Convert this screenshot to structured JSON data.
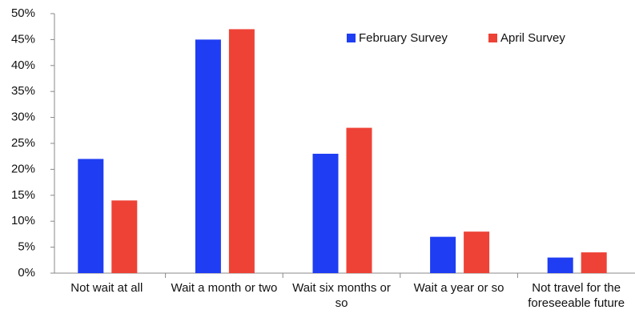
{
  "chart_data": {
    "type": "bar",
    "categories": [
      "Not wait at all",
      "Wait a month or two",
      "Wait six months or so",
      "Wait a year or so",
      "Not travel for the foreseeable future"
    ],
    "series": [
      {
        "name": "February Survey",
        "color": "#1f3df2",
        "values": [
          22,
          45,
          23,
          7,
          3
        ]
      },
      {
        "name": "April Survey",
        "color": "#ee4236",
        "values": [
          14,
          47,
          28,
          8,
          4
        ]
      }
    ],
    "ylim": [
      0,
      50
    ],
    "yticks": [
      {
        "value": 0,
        "label": "0%"
      },
      {
        "value": 5,
        "label": "5%"
      },
      {
        "value": 10,
        "label": "10%"
      },
      {
        "value": 15,
        "label": "15%"
      },
      {
        "value": 20,
        "label": "20%"
      },
      {
        "value": 25,
        "label": "25%"
      },
      {
        "value": 30,
        "label": "30%"
      },
      {
        "value": 35,
        "label": "35%"
      },
      {
        "value": 40,
        "label": "40%"
      },
      {
        "value": 45,
        "label": "45%"
      },
      {
        "value": 50,
        "label": "50%"
      }
    ],
    "legend": "upper right"
  }
}
